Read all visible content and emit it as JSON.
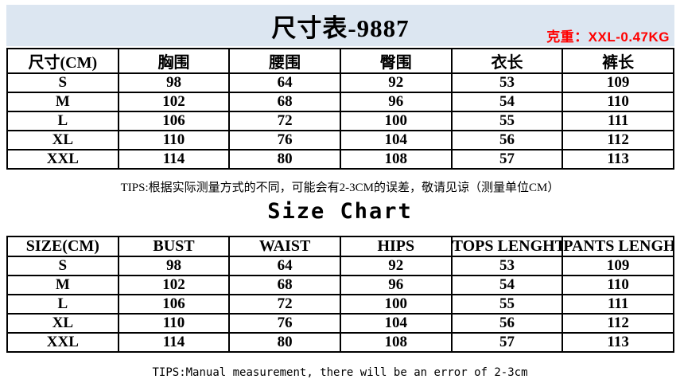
{
  "header": {
    "title": "尺寸表-9887",
    "weight_note": "克重：XXL-0.47KG"
  },
  "table_cn": {
    "headers": [
      "尺寸(CM)",
      "胸围",
      "腰围",
      "臀围",
      "衣长",
      "裤长"
    ],
    "rows": [
      [
        "S",
        "98",
        "64",
        "92",
        "53",
        "109"
      ],
      [
        "M",
        "102",
        "68",
        "96",
        "54",
        "110"
      ],
      [
        "L",
        "106",
        "72",
        "100",
        "55",
        "111"
      ],
      [
        "XL",
        "110",
        "76",
        "104",
        "56",
        "112"
      ],
      [
        "XXL",
        "114",
        "80",
        "108",
        "57",
        "113"
      ]
    ],
    "tips": "TIPS:根据实际测量方式的不同，可能会有2-3CM的误差，敬请见谅（测量单位CM）"
  },
  "section_en": {
    "title": "Size Chart"
  },
  "table_en": {
    "headers": [
      "SIZE(CM)",
      "BUST",
      "WAIST",
      "HIPS",
      "TOPS LENGHT",
      "PANTS LENGHT"
    ],
    "rows": [
      [
        "S",
        "98",
        "64",
        "92",
        "53",
        "109"
      ],
      [
        "M",
        "102",
        "68",
        "96",
        "54",
        "110"
      ],
      [
        "L",
        "106",
        "72",
        "100",
        "55",
        "111"
      ],
      [
        "XL",
        "110",
        "76",
        "104",
        "56",
        "112"
      ],
      [
        "XXL",
        "114",
        "80",
        "108",
        "57",
        "113"
      ]
    ],
    "tips": "TIPS:Manual measurement, there will be an error of 2-3cm"
  },
  "colors": {
    "band_bg": "#dce6f1",
    "accent_red": "#ff0000",
    "border": "#000000"
  }
}
